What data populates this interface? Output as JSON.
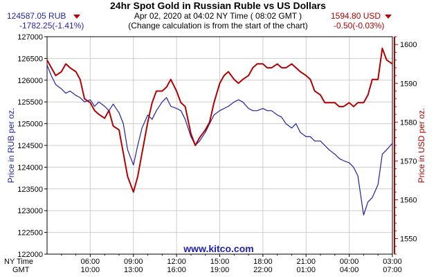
{
  "header": {
    "title": "24hr Spot Gold in Russian Ruble vs US Dollars",
    "timestamp": "Apr 02, 2020 at 04:02 NY Time ( 08:02 GMT )",
    "note": "(Change calculation is from the start of the chart)",
    "left_price": "124587.05 RUB",
    "left_change": "-1782.25(-1.41%)",
    "right_price": "1594.80 USD",
    "right_change": "-0.50(-0.03%)",
    "watermark": "www.kitco.com"
  },
  "colors": {
    "rub": "#1f1fa8",
    "usd": "#b00000",
    "grid": "#cccccc",
    "axis": "#000000"
  },
  "chart_data": {
    "type": "line",
    "title": "24hr Spot Gold in Russian Ruble vs US Dollars",
    "ylabel_left": "Price in RUB per oz.",
    "ylabel_right": "Price in USD per oz.",
    "xlabel_row1": "NY Time",
    "xlabel_row2": "GMT",
    "x_range_hours": [
      0,
      24
    ],
    "x_ticks": [
      {
        "ny": "06:00",
        "gmt": "10:00"
      },
      {
        "ny": "09:00",
        "gmt": "13:00"
      },
      {
        "ny": "12:00",
        "gmt": "16:00"
      },
      {
        "ny": "15:00",
        "gmt": "19:00"
      },
      {
        "ny": "18:00",
        "gmt": "22:00"
      },
      {
        "ny": "21:00",
        "gmt": "01:00"
      },
      {
        "ny": "00:00",
        "gmt": "04:00"
      },
      {
        "ny": "03:00",
        "gmt": "07:00"
      }
    ],
    "ylim_left": [
      122000,
      127000
    ],
    "yticks_left": [
      122000,
      122500,
      123000,
      123500,
      124000,
      124500,
      125000,
      125500,
      126000,
      126500,
      127000
    ],
    "ylim_right": [
      1546,
      1602
    ],
    "yticks_right": [
      1550,
      1560,
      1570,
      1580,
      1590,
      1600
    ],
    "grid": true,
    "series": [
      {
        "name": "RUB",
        "axis": "left",
        "x": [
          0,
          0.3,
          0.6,
          1,
          1.3,
          1.6,
          2,
          2.3,
          2.6,
          3,
          3.3,
          3.6,
          4,
          4.3,
          4.6,
          5,
          5.3,
          5.6,
          6,
          6.3,
          6.6,
          7,
          7.3,
          7.6,
          8,
          8.3,
          8.6,
          9,
          9.3,
          9.6,
          10,
          10.3,
          10.6,
          11,
          11.3,
          11.6,
          12,
          12.3,
          12.6,
          13,
          13.3,
          13.6,
          14,
          14.3,
          14.6,
          15,
          15.3,
          15.6,
          16,
          16.3,
          16.6,
          17,
          17.3,
          17.6,
          18,
          18.3,
          18.6,
          19,
          19.3,
          19.6,
          20,
          20.3,
          20.6,
          21,
          21.3,
          21.6,
          22,
          22.3,
          22.6,
          23,
          23.3,
          23.6,
          24
        ],
        "values": [
          126350,
          126100,
          125900,
          125800,
          125700,
          125750,
          125650,
          125600,
          125500,
          125550,
          125400,
          125500,
          125400,
          125300,
          125450,
          125250,
          125000,
          124400,
          124050,
          124500,
          124900,
          125200,
          125100,
          125300,
          125500,
          125600,
          125400,
          125350,
          125300,
          125100,
          124700,
          124500,
          124600,
          124800,
          125000,
          125200,
          125300,
          125350,
          125400,
          125500,
          125550,
          125500,
          125350,
          125300,
          125300,
          125350,
          125300,
          125300,
          125200,
          125150,
          125000,
          124900,
          125000,
          124800,
          124700,
          124700,
          124600,
          124600,
          124500,
          124400,
          124300,
          124200,
          124150,
          124100,
          124000,
          123800,
          122900,
          123200,
          123300,
          123600,
          124300,
          124400,
          124550
        ]
      },
      {
        "name": "USD",
        "axis": "right",
        "x": [
          0,
          0.3,
          0.6,
          1,
          1.3,
          1.6,
          2,
          2.3,
          2.6,
          3,
          3.3,
          3.6,
          4,
          4.3,
          4.6,
          5,
          5.3,
          5.6,
          6,
          6.3,
          6.6,
          7,
          7.3,
          7.6,
          8,
          8.3,
          8.6,
          9,
          9.3,
          9.6,
          10,
          10.3,
          10.6,
          11,
          11.3,
          11.6,
          12,
          12.3,
          12.6,
          13,
          13.3,
          13.6,
          14,
          14.3,
          14.6,
          15,
          15.3,
          15.6,
          16,
          16.3,
          16.6,
          17,
          17.3,
          17.6,
          18,
          18.3,
          18.6,
          19,
          19.3,
          19.6,
          20,
          20.3,
          20.6,
          21,
          21.3,
          21.6,
          22,
          22.3,
          22.6,
          23,
          23.3,
          23.6,
          24
        ],
        "values": [
          1596,
          1594,
          1592,
          1593,
          1595,
          1594,
          1593,
          1591,
          1586,
          1585,
          1583,
          1582,
          1581,
          1583,
          1579,
          1578,
          1572,
          1566,
          1562,
          1566,
          1572,
          1580,
          1585,
          1588,
          1588,
          1589,
          1591,
          1588,
          1585,
          1584,
          1577,
          1574,
          1576,
          1578,
          1580,
          1585,
          1590,
          1592,
          1593,
          1591,
          1590,
          1591,
          1592,
          1594,
          1595,
          1595,
          1594,
          1594,
          1595,
          1594,
          1594,
          1595,
          1594,
          1593,
          1592,
          1591,
          1588,
          1587,
          1585,
          1585,
          1585,
          1584,
          1584,
          1585,
          1584,
          1585,
          1585,
          1587,
          1591,
          1591,
          1599,
          1596,
          1595
        ]
      }
    ]
  }
}
